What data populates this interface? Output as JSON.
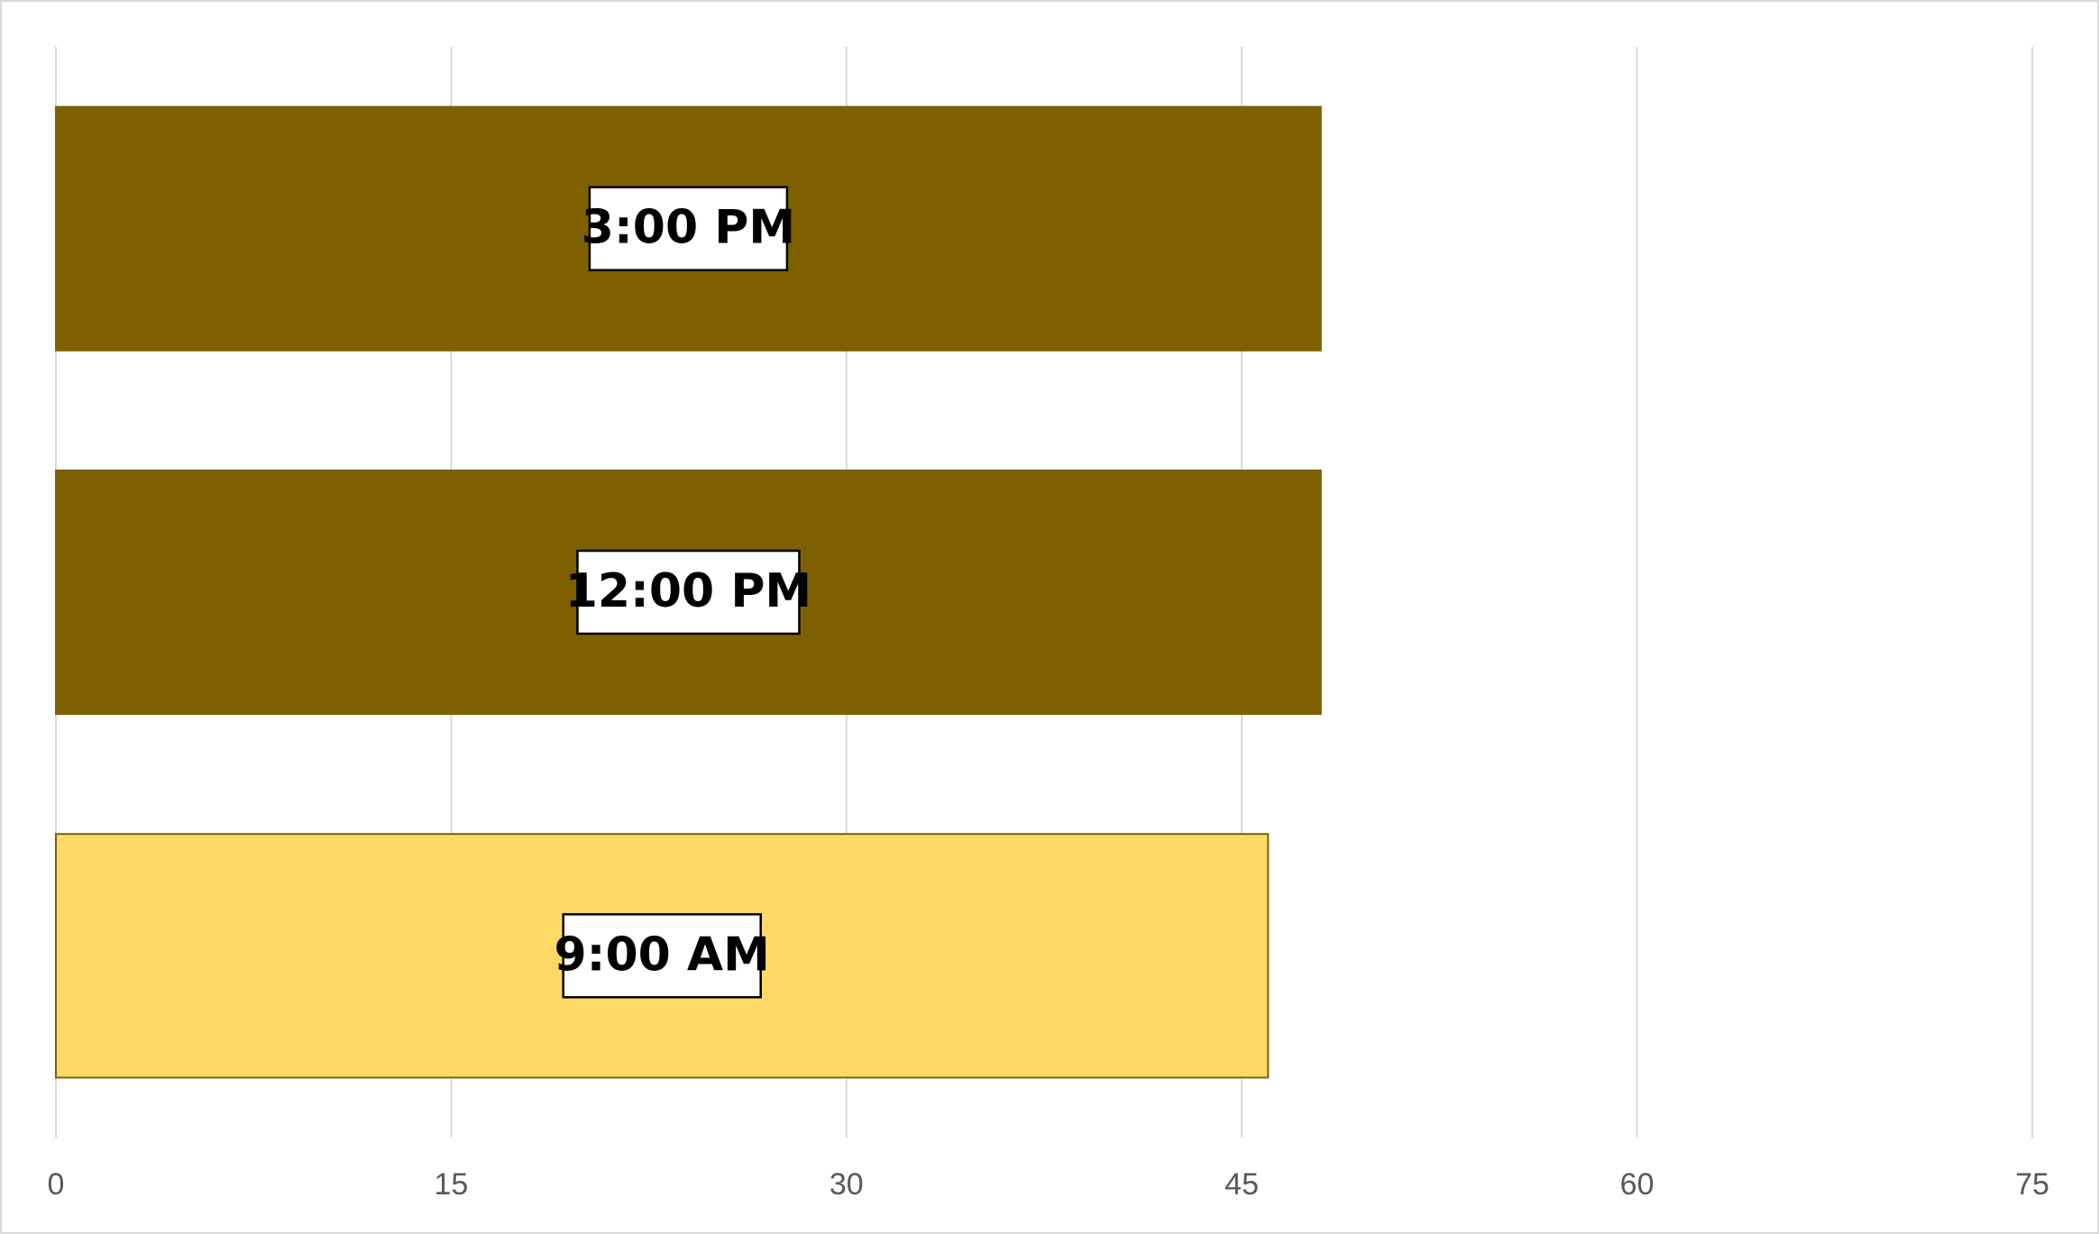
{
  "chart_data": {
    "type": "bar",
    "orientation": "horizontal",
    "title": "",
    "xlabel": "",
    "ylabel": "",
    "xlim": [
      0,
      75
    ],
    "x_ticks": [
      "0",
      "15",
      "30",
      "45",
      "60",
      "75"
    ],
    "grid": true,
    "legend": "none",
    "categories": [
      "9:00 AM",
      "12:00 PM",
      "3:00 PM"
    ],
    "values": [
      46,
      48,
      48
    ],
    "bar_colors": [
      "#FFD966",
      "#7F6000",
      "#7F6000"
    ],
    "bar_edge_colors": [
      "#7F6000",
      "#7F6000",
      "#7F6000"
    ],
    "data_label_border_color": "#000000",
    "gridline_color": "#d9d9d9",
    "tick_label_color": "#595959"
  }
}
